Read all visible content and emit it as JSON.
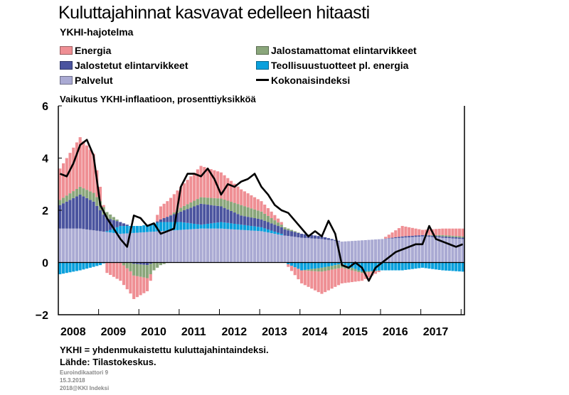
{
  "header": {
    "title": "Kuluttajahinnat kasvavat edelleen hitaasti",
    "subtitle": "YKHI-hajotelma"
  },
  "legend": {
    "energia": "Energia",
    "jalostamattomat": "Jalostamattomat elintarvikkeet",
    "jalostetut": "Jalostetut elintarvikkeet",
    "teollisuus": "Teollisuustuotteet pl. energia",
    "palvelut": "Palvelut",
    "kokonais": "Kokonaisindeksi"
  },
  "colors": {
    "energia": "#ef8f94",
    "jalostamattomat": "#8aa67b",
    "jalostetut": "#4b549f",
    "teollisuus": "#0aa0dc",
    "palvelut": "#aaaad3",
    "kokonais": "#000000"
  },
  "footer": {
    "note1": "YKHI = yhdenmukaistettu kuluttajahintaindeksi.",
    "note2": "Lähde: Tilastokeskus.",
    "small1": "Euroindikaattori 9",
    "small2": "15.3.2018",
    "small3": "2018@KKI Indeksi"
  },
  "chart_data": {
    "type": "bar",
    "stacked": true,
    "title": "Kuluttajahinnat kasvavat edelleen hitaasti",
    "ylabel": "Vaikutus YKHI-inflaatioon, prosenttiyksikköä",
    "ylim": [
      -2,
      6
    ],
    "yticks": [
      "6",
      "4",
      "2",
      "0",
      "−2"
    ],
    "xticks": [
      "2008",
      "2009",
      "2010",
      "2011",
      "2012",
      "2013",
      "2014",
      "2015",
      "2016",
      "2017"
    ],
    "frequency": "monthly",
    "start": "2008-01",
    "end": "2018-01",
    "anchors": {
      "palvelut": [
        [
          0,
          1.3
        ],
        [
          6,
          1.3
        ],
        [
          12,
          1.2
        ],
        [
          18,
          1.1
        ],
        [
          24,
          1.15
        ],
        [
          30,
          1.2
        ],
        [
          36,
          1.25
        ],
        [
          42,
          1.3
        ],
        [
          48,
          1.3
        ],
        [
          54,
          1.25
        ],
        [
          60,
          1.2
        ],
        [
          66,
          1.05
        ],
        [
          72,
          0.95
        ],
        [
          78,
          0.9
        ],
        [
          84,
          0.8
        ],
        [
          90,
          0.85
        ],
        [
          96,
          0.9
        ],
        [
          102,
          0.95
        ],
        [
          108,
          1.0
        ],
        [
          114,
          0.95
        ],
        [
          120,
          0.9
        ]
      ],
      "teollisuus": [
        [
          0,
          -0.45
        ],
        [
          6,
          -0.3
        ],
        [
          12,
          -0.1
        ],
        [
          18,
          0.3
        ],
        [
          24,
          0.25
        ],
        [
          30,
          0.35
        ],
        [
          36,
          0.3
        ],
        [
          42,
          0.15
        ],
        [
          48,
          0.25
        ],
        [
          54,
          0.2
        ],
        [
          60,
          0.15
        ],
        [
          66,
          0.05
        ],
        [
          72,
          -0.3
        ],
        [
          78,
          -0.2
        ],
        [
          84,
          -0.05
        ],
        [
          90,
          -0.35
        ],
        [
          96,
          -0.3
        ],
        [
          102,
          -0.3
        ],
        [
          108,
          -0.2
        ],
        [
          114,
          -0.3
        ],
        [
          120,
          -0.35
        ]
      ],
      "jalostetut": [
        [
          0,
          0.9
        ],
        [
          6,
          1.3
        ],
        [
          10,
          1.1
        ],
        [
          14,
          0.5
        ],
        [
          18,
          0.15
        ],
        [
          22,
          -0.05
        ],
        [
          26,
          -0.1
        ],
        [
          32,
          0.2
        ],
        [
          36,
          0.4
        ],
        [
          42,
          0.8
        ],
        [
          48,
          0.6
        ],
        [
          54,
          0.35
        ],
        [
          60,
          0.3
        ],
        [
          66,
          0.25
        ],
        [
          72,
          0.15
        ],
        [
          78,
          0.1
        ],
        [
          84,
          0.0
        ],
        [
          90,
          0.0
        ],
        [
          96,
          0.0
        ],
        [
          102,
          0.05
        ],
        [
          108,
          0.05
        ],
        [
          114,
          0.05
        ],
        [
          120,
          0.05
        ]
      ],
      "jalostamattomat": [
        [
          0,
          0.2
        ],
        [
          6,
          0.3
        ],
        [
          12,
          0.35
        ],
        [
          18,
          0.0
        ],
        [
          22,
          -0.45
        ],
        [
          26,
          -0.5
        ],
        [
          30,
          -0.1
        ],
        [
          36,
          0.15
        ],
        [
          42,
          0.25
        ],
        [
          48,
          0.3
        ],
        [
          54,
          0.4
        ],
        [
          60,
          0.3
        ],
        [
          66,
          0.1
        ],
        [
          72,
          0.0
        ],
        [
          78,
          -0.15
        ],
        [
          84,
          -0.15
        ],
        [
          90,
          -0.05
        ],
        [
          96,
          0.0
        ],
        [
          102,
          0.0
        ],
        [
          108,
          0.0
        ],
        [
          114,
          0.05
        ],
        [
          120,
          0.05
        ]
      ],
      "energia": [
        [
          0,
          1.2
        ],
        [
          6,
          1.9
        ],
        [
          10,
          1.5
        ],
        [
          14,
          -0.4
        ],
        [
          18,
          -0.7
        ],
        [
          22,
          -0.9
        ],
        [
          26,
          -0.5
        ],
        [
          30,
          0.5
        ],
        [
          36,
          0.8
        ],
        [
          42,
          1.2
        ],
        [
          48,
          1.0
        ],
        [
          54,
          0.6
        ],
        [
          60,
          0.4
        ],
        [
          66,
          0.1
        ],
        [
          72,
          -0.5
        ],
        [
          78,
          -0.85
        ],
        [
          84,
          -0.6
        ],
        [
          90,
          -0.3
        ],
        [
          96,
          0.0
        ],
        [
          102,
          0.4
        ],
        [
          108,
          0.2
        ],
        [
          114,
          0.25
        ],
        [
          120,
          0.3
        ]
      ]
    },
    "total": [
      [
        0,
        3.4
      ],
      [
        2,
        3.3
      ],
      [
        4,
        3.8
      ],
      [
        6,
        4.5
      ],
      [
        8,
        4.7
      ],
      [
        10,
        4.1
      ],
      [
        12,
        2.2
      ],
      [
        14,
        1.7
      ],
      [
        16,
        1.3
      ],
      [
        18,
        0.9
      ],
      [
        20,
        0.6
      ],
      [
        22,
        1.8
      ],
      [
        24,
        1.7
      ],
      [
        26,
        1.4
      ],
      [
        28,
        1.5
      ],
      [
        30,
        1.1
      ],
      [
        32,
        1.2
      ],
      [
        34,
        1.3
      ],
      [
        36,
        2.9
      ],
      [
        38,
        3.4
      ],
      [
        40,
        3.4
      ],
      [
        42,
        3.3
      ],
      [
        44,
        3.6
      ],
      [
        46,
        3.2
      ],
      [
        48,
        2.6
      ],
      [
        50,
        3.0
      ],
      [
        52,
        2.9
      ],
      [
        54,
        3.1
      ],
      [
        56,
        3.2
      ],
      [
        58,
        3.4
      ],
      [
        60,
        2.9
      ],
      [
        62,
        2.6
      ],
      [
        64,
        2.2
      ],
      [
        66,
        2.0
      ],
      [
        68,
        1.9
      ],
      [
        70,
        1.6
      ],
      [
        72,
        1.3
      ],
      [
        74,
        1.0
      ],
      [
        76,
        1.2
      ],
      [
        78,
        1.0
      ],
      [
        80,
        1.6
      ],
      [
        82,
        1.1
      ],
      [
        84,
        -0.1
      ],
      [
        86,
        -0.2
      ],
      [
        88,
        0.0
      ],
      [
        90,
        -0.2
      ],
      [
        92,
        -0.7
      ],
      [
        94,
        -0.2
      ],
      [
        96,
        0.0
      ],
      [
        98,
        0.2
      ],
      [
        100,
        0.4
      ],
      [
        102,
        0.5
      ],
      [
        104,
        0.6
      ],
      [
        106,
        0.7
      ],
      [
        108,
        0.7
      ],
      [
        110,
        1.4
      ],
      [
        112,
        0.9
      ],
      [
        114,
        0.8
      ],
      [
        116,
        0.7
      ],
      [
        118,
        0.6
      ],
      [
        120,
        0.7
      ]
    ]
  }
}
